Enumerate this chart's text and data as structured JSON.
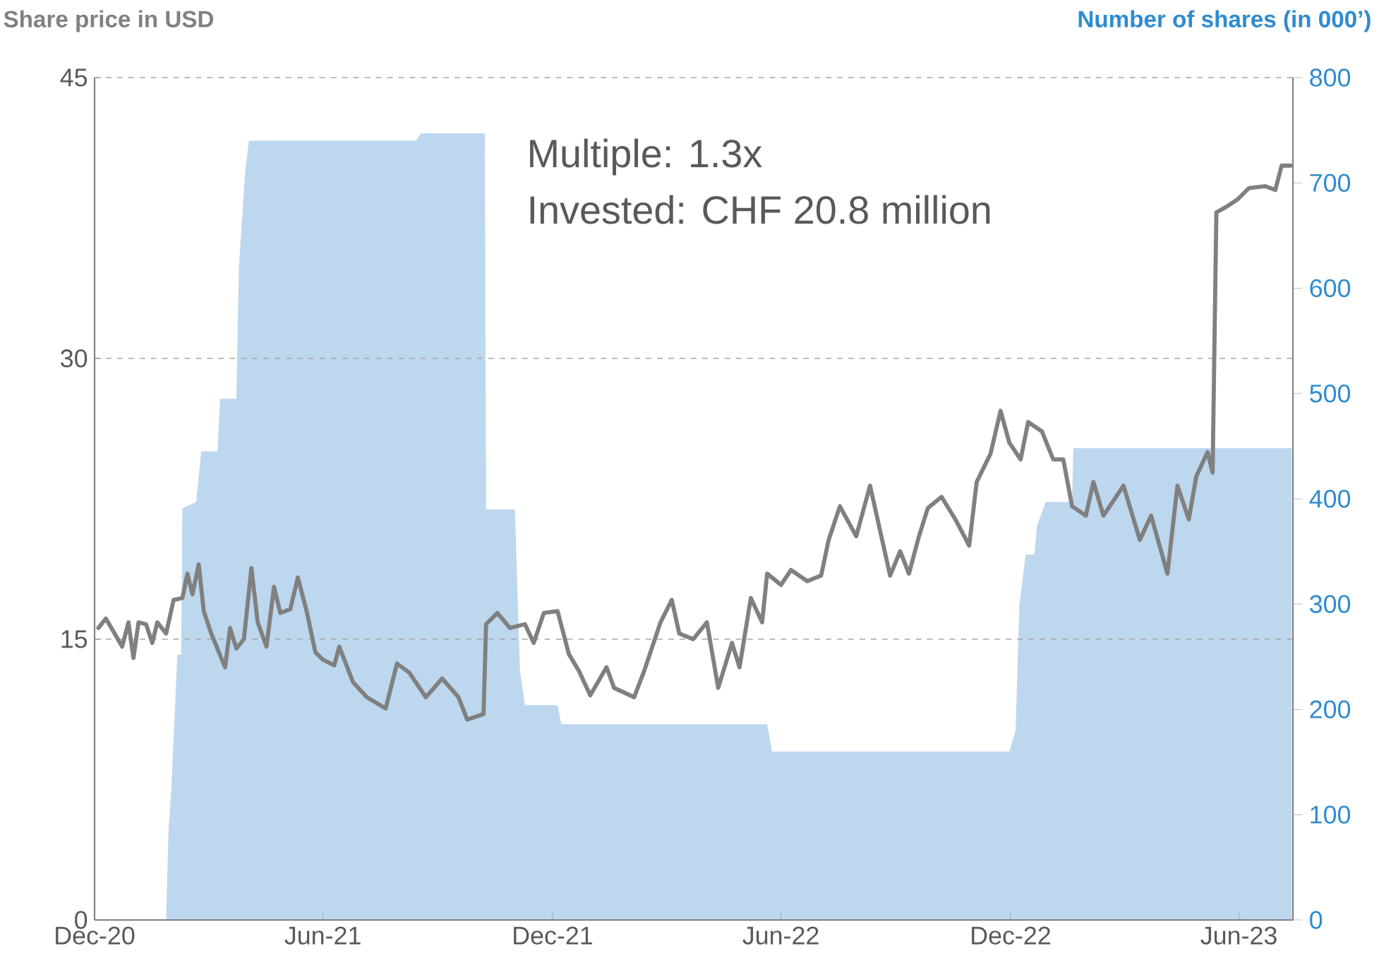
{
  "chart_data": {
    "type": "line",
    "ylabel": "Share price in USD",
    "y2label": "Number of shares (in 000’)",
    "annotations": [
      "Multiple: 1.3x",
      "Invested: CHF 20.8 million"
    ],
    "xlim": [
      "2020-12-01",
      "2023-07-14"
    ],
    "xticks": [
      {
        "value": "2020-12-01",
        "label": "Dec-20"
      },
      {
        "value": "2021-06-01",
        "label": "Jun-21"
      },
      {
        "value": "2021-12-01",
        "label": "Dec-21"
      },
      {
        "value": "2022-06-01",
        "label": "Jun-22"
      },
      {
        "value": "2022-12-01",
        "label": "Dec-22"
      },
      {
        "value": "2023-06-01",
        "label": "Jun-23"
      }
    ],
    "ylim": [
      0,
      45
    ],
    "yticks": [
      0,
      15,
      30,
      45
    ],
    "y2lim": [
      0,
      800
    ],
    "y2ticks": [
      0,
      100,
      200,
      300,
      400,
      500,
      600,
      700,
      800
    ],
    "grid": "y",
    "series": [
      {
        "type": "area",
        "axis": "y2",
        "color": "#bdd7ee",
        "x": [
          "2021-01-27",
          "2021-01-29",
          "2021-01-31",
          "2021-02-05",
          "2021-02-08",
          "2021-02-09",
          "2021-02-20",
          "2021-02-24",
          "2021-03-09",
          "2021-03-11",
          "2021-03-24",
          "2021-03-26",
          "2021-03-31",
          "2021-04-03",
          "2021-08-14",
          "2021-08-18",
          "2021-10-08",
          "2021-10-09",
          "2021-11-01",
          "2021-11-05",
          "2021-11-09",
          "2021-12-05",
          "2021-12-08",
          "2022-05-21",
          "2022-05-25",
          "2022-11-30",
          "2022-12-05",
          "2022-12-08",
          "2022-12-13",
          "2022-12-20",
          "2022-12-22",
          "2022-12-29",
          "2023-01-19",
          "2023-01-20",
          "2023-07-13"
        ],
        "values": [
          0,
          87,
          121,
          252,
          252,
          391,
          397,
          445,
          445,
          495,
          495,
          620,
          710,
          740,
          740,
          747,
          747,
          390,
          390,
          237,
          204,
          204,
          186,
          186,
          160,
          160,
          180,
          299,
          347,
          347,
          374,
          397,
          397,
          448,
          448
        ]
      },
      {
        "axis": "y",
        "color": "#808080",
        "x": [
          "2020-12-04",
          "2020-12-10",
          "2020-12-17",
          "2020-12-23",
          "2020-12-28",
          "2021-01-01",
          "2021-01-05",
          "2021-01-11",
          "2021-01-16",
          "2021-01-20",
          "2021-01-27",
          "2021-02-02",
          "2021-02-09",
          "2021-02-13",
          "2021-02-17",
          "2021-02-22",
          "2021-02-26",
          "2021-03-04",
          "2021-03-15",
          "2021-03-19",
          "2021-03-24",
          "2021-03-30",
          "2021-04-05",
          "2021-04-10",
          "2021-04-17",
          "2021-04-23",
          "2021-04-28",
          "2021-05-06",
          "2021-05-12",
          "2021-05-19",
          "2021-05-26",
          "2021-06-01",
          "2021-06-10",
          "2021-06-14",
          "2021-06-25",
          "2021-07-06",
          "2021-07-21",
          "2021-07-30",
          "2021-08-09",
          "2021-08-22",
          "2021-09-04",
          "2021-09-17",
          "2021-09-24",
          "2021-10-07",
          "2021-10-09",
          "2021-10-18",
          "2021-10-28",
          "2021-11-09",
          "2021-11-16",
          "2021-11-24",
          "2021-12-05",
          "2021-12-14",
          "2021-12-22",
          "2021-12-31",
          "2022-01-13",
          "2022-01-19",
          "2022-02-04",
          "2022-02-12",
          "2022-02-25",
          "2022-03-06",
          "2022-03-12",
          "2022-03-23",
          "2022-04-03",
          "2022-04-12",
          "2022-04-23",
          "2022-04-29",
          "2022-05-08",
          "2022-05-17",
          "2022-05-21",
          "2022-06-01",
          "2022-06-09",
          "2022-06-22",
          "2022-07-03",
          "2022-07-09",
          "2022-07-18",
          "2022-07-31",
          "2022-08-11",
          "2022-08-27",
          "2022-09-04",
          "2022-09-11",
          "2022-09-19",
          "2022-09-26",
          "2022-10-07",
          "2022-10-18",
          "2022-10-29",
          "2022-11-04",
          "2022-11-15",
          "2022-11-23",
          "2022-11-30",
          "2022-12-09",
          "2022-12-15",
          "2022-12-26",
          "2023-01-04",
          "2023-01-12",
          "2023-01-19",
          "2023-01-30",
          "2023-02-05",
          "2023-02-13",
          "2023-03-01",
          "2023-03-14",
          "2023-03-23",
          "2023-04-05",
          "2023-04-13",
          "2023-04-22",
          "2023-04-28",
          "2023-05-07",
          "2023-05-11",
          "2023-05-14",
          "2023-05-22",
          "2023-05-31",
          "2023-06-09",
          "2023-06-22",
          "2023-06-30",
          "2023-07-05",
          "2023-07-12"
        ],
        "values": [
          15.6,
          16.1,
          15.3,
          14.6,
          15.9,
          14.0,
          15.9,
          15.8,
          14.8,
          15.9,
          15.3,
          17.1,
          17.2,
          18.5,
          17.4,
          19.0,
          16.5,
          15.3,
          13.5,
          15.6,
          14.5,
          15.0,
          18.8,
          15.9,
          14.6,
          17.8,
          16.4,
          16.6,
          18.3,
          16.5,
          14.3,
          13.9,
          13.6,
          14.6,
          12.7,
          11.9,
          11.3,
          13.7,
          13.2,
          11.9,
          12.9,
          11.9,
          10.7,
          11.0,
          15.8,
          16.4,
          15.6,
          15.8,
          14.8,
          16.4,
          16.5,
          14.2,
          13.3,
          12.0,
          13.5,
          12.4,
          11.9,
          13.3,
          15.9,
          17.1,
          15.3,
          15.0,
          15.9,
          12.4,
          14.8,
          13.5,
          17.2,
          15.9,
          18.5,
          17.9,
          18.7,
          18.1,
          18.4,
          20.3,
          22.1,
          20.5,
          23.2,
          18.4,
          19.7,
          18.5,
          20.5,
          22.0,
          22.6,
          21.4,
          20.0,
          23.4,
          24.9,
          27.2,
          25.5,
          24.6,
          26.6,
          26.1,
          24.6,
          24.6,
          22.1,
          21.6,
          23.4,
          21.6,
          23.2,
          20.3,
          21.6,
          18.5,
          23.2,
          21.4,
          23.7,
          25.0,
          23.9,
          37.8,
          38.1,
          38.5,
          39.1,
          39.2,
          39.0,
          40.3,
          40.3
        ]
      }
    ]
  }
}
